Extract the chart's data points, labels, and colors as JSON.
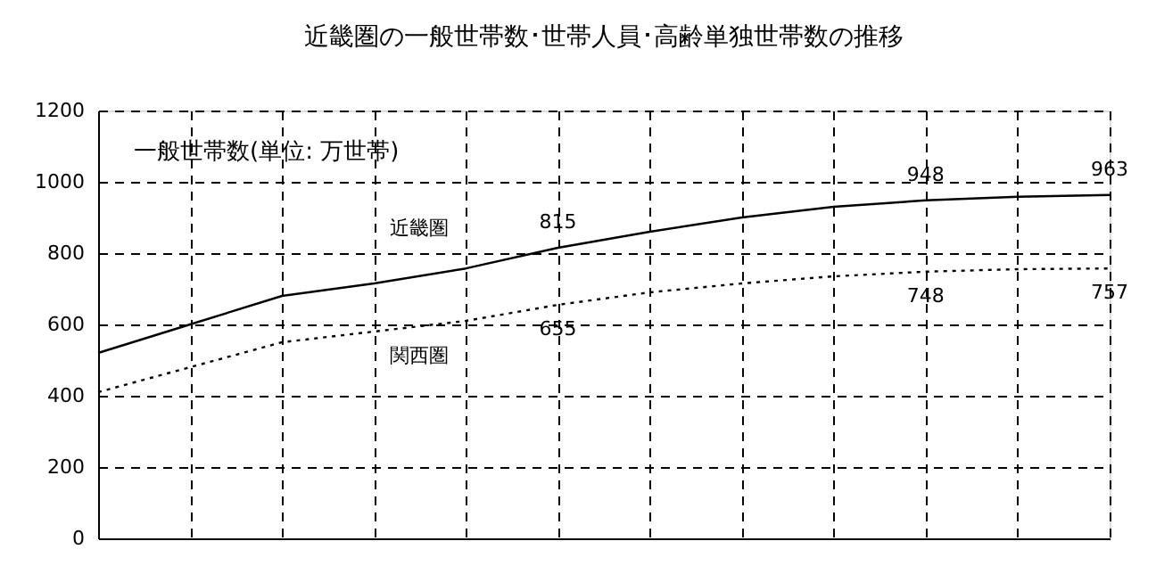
{
  "chart_data": {
    "type": "line",
    "title": "近畿圏の一般世帯数･世帯人員･高齢単独世帯数の推移",
    "annotations": [
      "一般世帯数(単位: 万世帯)"
    ],
    "categories": [
      null,
      null,
      null,
      null,
      null,
      null,
      null,
      null,
      null,
      null,
      null,
      null
    ],
    "series": [
      {
        "name": "近畿圏",
        "color": "#000000",
        "line_style": "solid",
        "values": [
          520,
          600,
          680,
          715,
          757,
          815,
          860,
          900,
          930,
          948,
          958,
          963
        ],
        "value_labels": [
          null,
          null,
          null,
          null,
          null,
          "815",
          null,
          null,
          null,
          "948",
          null,
          "963"
        ]
      },
      {
        "name": "関西圏",
        "color": "#000000",
        "line_style": "dotted",
        "values": [
          410,
          480,
          550,
          580,
          610,
          655,
          690,
          715,
          735,
          748,
          755,
          757
        ],
        "value_labels": [
          null,
          null,
          null,
          null,
          null,
          "655",
          null,
          null,
          null,
          "748",
          null,
          "757"
        ]
      }
    ],
    "ylim": [
      0,
      1200
    ],
    "yticks": [
      0,
      200,
      400,
      600,
      800,
      1000,
      1200
    ],
    "grid": true,
    "tick_labels": "y",
    "marker": "none"
  }
}
